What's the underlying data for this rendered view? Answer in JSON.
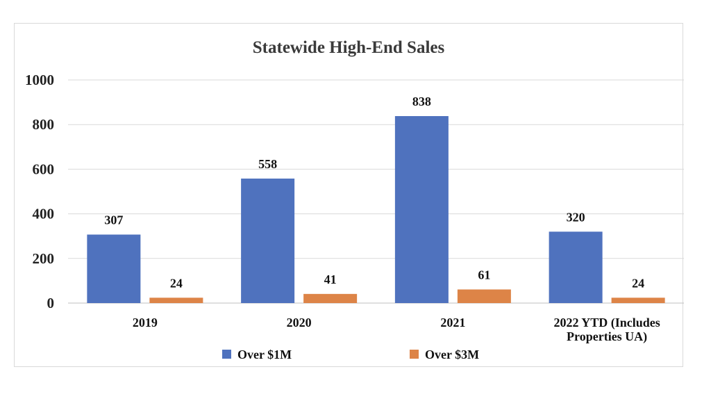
{
  "chart_data": {
    "type": "bar",
    "title": "Statewide High-End Sales",
    "xlabel": "",
    "ylabel": "",
    "categories": [
      [
        "2019"
      ],
      [
        "2020"
      ],
      [
        "2021"
      ],
      [
        "2022 YTD (Includes",
        "Properties UA)"
      ]
    ],
    "series": [
      {
        "name": "Over $1M",
        "values": [
          307,
          558,
          838,
          320
        ],
        "color": "#4f72be"
      },
      {
        "name": "Over $3M",
        "values": [
          24,
          41,
          61,
          24
        ],
        "color": "#dd8447"
      }
    ],
    "ylim": [
      0,
      1000
    ],
    "yticks": [
      0,
      200,
      400,
      600,
      800,
      1000
    ],
    "grid": true,
    "legend_position": "bottom",
    "data_labels": true
  }
}
